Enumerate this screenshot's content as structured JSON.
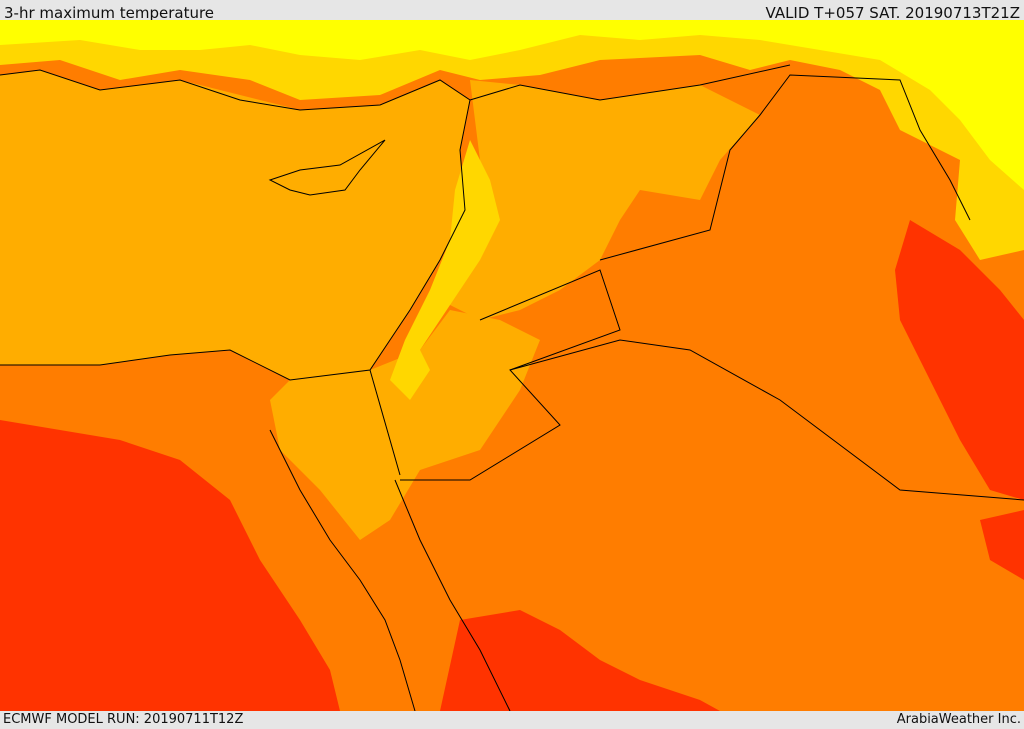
{
  "header": {
    "title": "3-hr maximum temperature",
    "valid": "VALID T+057 SAT. 20190713T21Z"
  },
  "footer": {
    "model_run": "ECMWF MODEL RUN: 20190711T12Z",
    "credit": "ArabiaWeather Inc."
  },
  "map": {
    "colors": {
      "hot": "#ff3300",
      "warm": "#ff7d00",
      "sea": "#ffad00",
      "mild": "#ffd700",
      "cool": "#ffff00",
      "border": "#000000"
    }
  }
}
